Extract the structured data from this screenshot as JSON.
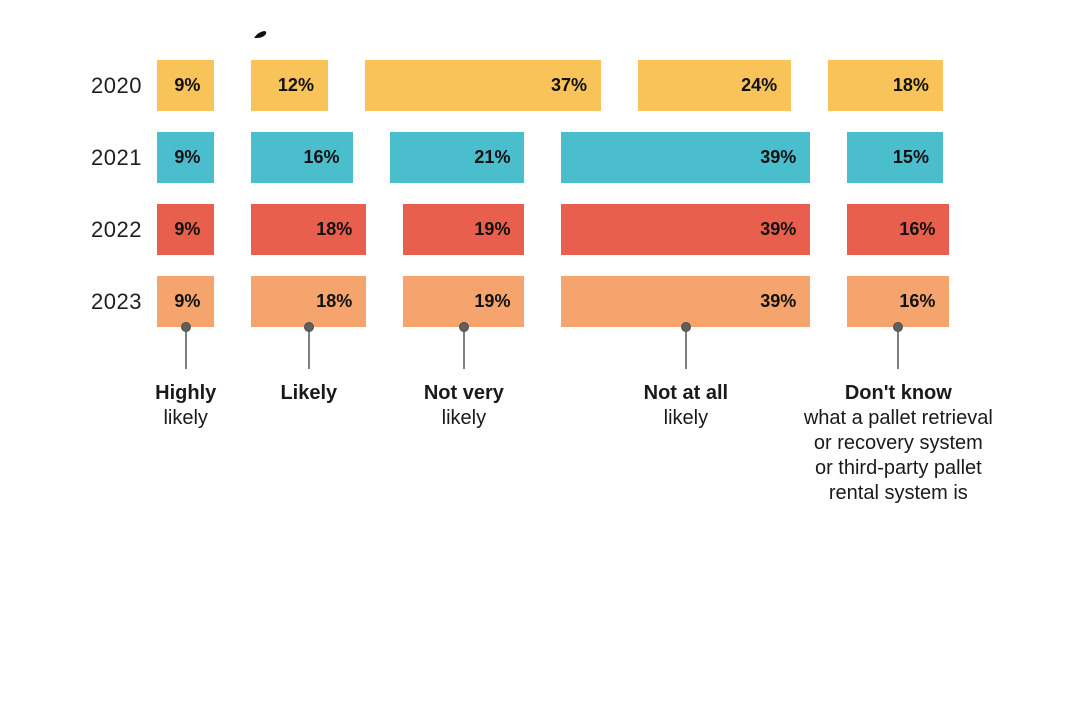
{
  "decoration": {
    "top_fragment_icon": "cropped-letter-descender"
  },
  "chart_data": {
    "type": "bar",
    "subtype": "proportional-horizontal-grouped",
    "title": "",
    "xlabel": "",
    "ylabel": "",
    "value_suffix": "%",
    "legend_position": "none",
    "grid": false,
    "axis_note": "bar segment width proportional to percentage; rows labeled by year on left; category labels below with lollipop pointers from 2023 row",
    "categories": [
      {
        "name": "Highly likely",
        "bold_lines": [
          "Highly"
        ],
        "regular_lines": [
          "likely"
        ]
      },
      {
        "name": "Likely",
        "bold_lines": [
          "Likely"
        ],
        "regular_lines": []
      },
      {
        "name": "Not very likely",
        "bold_lines": [
          "Not very"
        ],
        "regular_lines": [
          "likely"
        ]
      },
      {
        "name": "Not at all likely",
        "bold_lines": [
          "Not at all"
        ],
        "regular_lines": [
          "likely"
        ]
      },
      {
        "name": "Don't know what a pallet retrieval or recovery system or third-party pallet rental system is",
        "bold_lines": [
          "Don't know"
        ],
        "regular_lines": [
          "what a pallet retrieval",
          "or recovery system",
          "or third-party pallet",
          "rental system is"
        ]
      }
    ],
    "series": [
      {
        "name": "2020",
        "color": "#F8C45A",
        "values": [
          9,
          12,
          37,
          24,
          18
        ]
      },
      {
        "name": "2021",
        "color": "#4BBECD",
        "values": [
          9,
          16,
          21,
          39,
          15
        ]
      },
      {
        "name": "2022",
        "color": "#E95F4D",
        "values": [
          9,
          18,
          19,
          39,
          16
        ]
      },
      {
        "name": "2023",
        "color": "#F4A46C",
        "values": [
          9,
          18,
          19,
          39,
          16
        ]
      }
    ],
    "marker_color": "#5f5f5f",
    "pin_line_color": "#7f7f7f",
    "text_color": "#111111"
  }
}
